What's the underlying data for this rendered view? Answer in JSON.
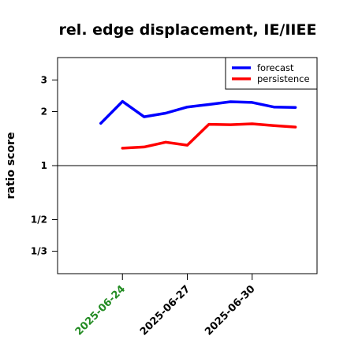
{
  "chart_data": {
    "type": "line",
    "title": "rel. edge displacement, IE/IIEE",
    "xlabel": "",
    "ylabel": "ratio score",
    "yscale": "log",
    "ylim": [
      0.25,
      4.0
    ],
    "xlim": [
      "2025-06-21",
      "2025-07-03"
    ],
    "yticks": [
      {
        "value": 0.3333,
        "label": "1/3"
      },
      {
        "value": 0.5,
        "label": "1/2"
      },
      {
        "value": 1,
        "label": "1"
      },
      {
        "value": 2,
        "label": "2"
      },
      {
        "value": 3,
        "label": "3"
      }
    ],
    "xticks": [
      {
        "date": "2025-06-24",
        "label": "2025-06-24",
        "color": "#228B22"
      },
      {
        "date": "2025-06-27",
        "label": "2025-06-27",
        "color": "#000000"
      },
      {
        "date": "2025-06-30",
        "label": "2025-06-30",
        "color": "#000000"
      }
    ],
    "reference_line": 1,
    "legend": {
      "position": "top-right"
    },
    "series": [
      {
        "name": "forecast",
        "color": "#0000ff",
        "points": [
          {
            "date": "2025-06-23",
            "value": 1.72
          },
          {
            "date": "2025-06-24",
            "value": 2.28
          },
          {
            "date": "2025-06-25",
            "value": 1.87
          },
          {
            "date": "2025-06-26",
            "value": 1.96
          },
          {
            "date": "2025-06-27",
            "value": 2.12
          },
          {
            "date": "2025-06-28",
            "value": 2.19
          },
          {
            "date": "2025-06-29",
            "value": 2.27
          },
          {
            "date": "2025-06-30",
            "value": 2.25
          },
          {
            "date": "2025-07-01",
            "value": 2.12
          },
          {
            "date": "2025-07-02",
            "value": 2.11
          }
        ]
      },
      {
        "name": "persistence",
        "color": "#ff0000",
        "points": [
          {
            "date": "2025-06-24",
            "value": 1.25
          },
          {
            "date": "2025-06-25",
            "value": 1.27
          },
          {
            "date": "2025-06-26",
            "value": 1.35
          },
          {
            "date": "2025-06-27",
            "value": 1.3
          },
          {
            "date": "2025-06-28",
            "value": 1.7
          },
          {
            "date": "2025-06-29",
            "value": 1.69
          },
          {
            "date": "2025-06-30",
            "value": 1.71
          },
          {
            "date": "2025-07-01",
            "value": 1.67
          },
          {
            "date": "2025-07-02",
            "value": 1.64
          }
        ]
      }
    ]
  }
}
